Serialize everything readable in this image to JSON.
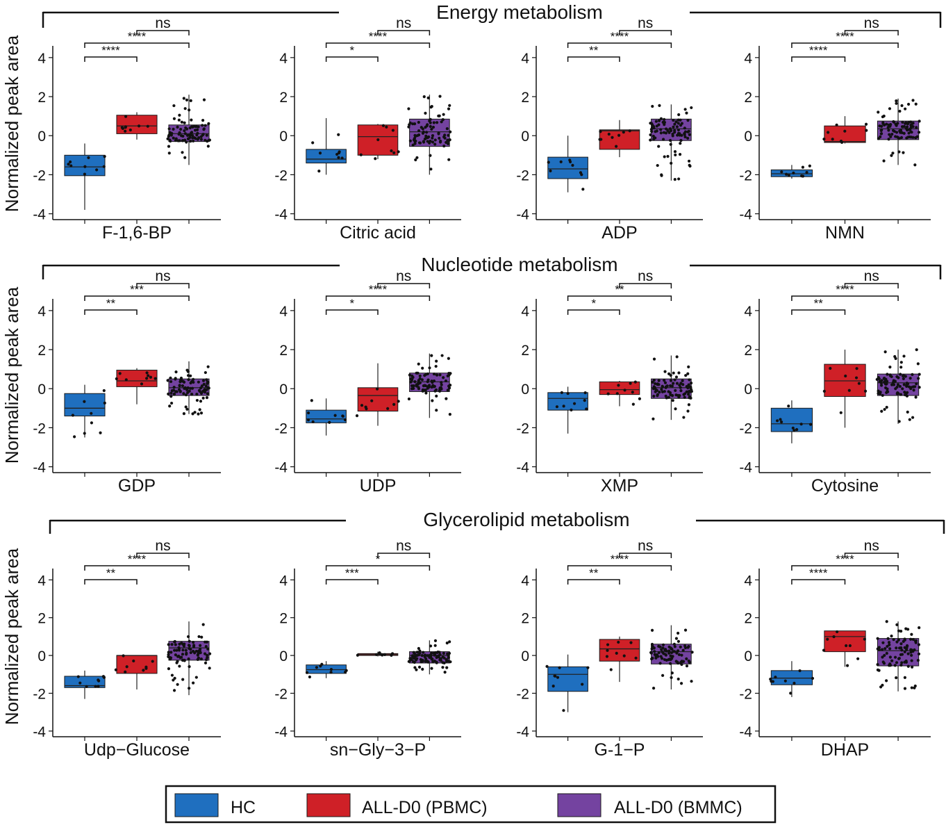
{
  "figure": {
    "y_axis_label": "Normalized peak area",
    "sections": [
      "Energy metabolism",
      "Nucleotide metabolism",
      "Glycerolipid metabolism"
    ],
    "groups": [
      {
        "name": "HC",
        "color": "#1f6fbf"
      },
      {
        "name": "ALL-D0 (PBMC)",
        "color": "#cf2027"
      },
      {
        "name": "ALL-D0 (BMMC)",
        "color": "#7443a0"
      }
    ],
    "outline_color": "#1a1a1a",
    "point_color": "#111111"
  },
  "chart_data": [
    {
      "type": "box",
      "section": "Energy metabolism",
      "xlabel": "F-1,6-BP",
      "ylim": [
        -4.3,
        4.6
      ],
      "yticks": [
        -4,
        -2,
        0,
        2,
        4
      ],
      "boxes": [
        {
          "group": "HC",
          "q1": -2.05,
          "median": -1.6,
          "q3": -1.0,
          "whisker_low": -3.8,
          "whisker_high": -0.4
        },
        {
          "group": "ALL-D0 (PBMC)",
          "q1": 0.1,
          "median": 0.5,
          "q3": 1.05,
          "whisker_low": -0.2,
          "whisker_high": 1.2
        },
        {
          "group": "ALL-D0 (BMMC)",
          "q1": -0.3,
          "median": 0.1,
          "q3": 0.55,
          "whisker_low": -1.5,
          "whisker_high": 2.1
        }
      ],
      "comparisons": [
        {
          "from": "ALL-D0 (PBMC)",
          "to": "ALL-D0 (BMMC)",
          "label": "ns"
        },
        {
          "from": "HC",
          "to": "ALL-D0 (BMMC)",
          "label": "****"
        },
        {
          "from": "HC",
          "to": "ALL-D0 (PBMC)",
          "label": "****"
        }
      ]
    },
    {
      "type": "box",
      "section": "Energy metabolism",
      "xlabel": "Citric acid",
      "ylim": [
        -4.3,
        4.6
      ],
      "yticks": [
        -4,
        -2,
        0,
        2,
        4
      ],
      "boxes": [
        {
          "group": "HC",
          "q1": -1.4,
          "median": -1.2,
          "q3": -0.7,
          "whisker_low": -2.0,
          "whisker_high": 0.9
        },
        {
          "group": "ALL-D0 (PBMC)",
          "q1": -1.0,
          "median": -0.05,
          "q3": 0.55,
          "whisker_low": -1.2,
          "whisker_high": 0.6
        },
        {
          "group": "ALL-D0 (BMMC)",
          "q1": -0.55,
          "median": 0.2,
          "q3": 0.85,
          "whisker_low": -2.0,
          "whisker_high": 2.1
        }
      ],
      "comparisons": [
        {
          "from": "ALL-D0 (PBMC)",
          "to": "ALL-D0 (BMMC)",
          "label": "ns"
        },
        {
          "from": "HC",
          "to": "ALL-D0 (BMMC)",
          "label": "****"
        },
        {
          "from": "HC",
          "to": "ALL-D0 (PBMC)",
          "label": "*"
        }
      ]
    },
    {
      "type": "box",
      "section": "Energy metabolism",
      "xlabel": "ADP",
      "ylim": [
        -4.3,
        4.6
      ],
      "yticks": [
        -4,
        -2,
        0,
        2,
        4
      ],
      "boxes": [
        {
          "group": "HC",
          "q1": -2.2,
          "median": -1.7,
          "q3": -1.1,
          "whisker_low": -2.9,
          "whisker_high": 0.0
        },
        {
          "group": "ALL-D0 (PBMC)",
          "q1": -0.7,
          "median": 0.25,
          "q3": 0.3,
          "whisker_low": -1.1,
          "whisker_high": 0.8
        },
        {
          "group": "ALL-D0 (BMMC)",
          "q1": -0.25,
          "median": 0.35,
          "q3": 0.85,
          "whisker_low": -2.3,
          "whisker_high": 1.6
        }
      ],
      "comparisons": [
        {
          "from": "ALL-D0 (PBMC)",
          "to": "ALL-D0 (BMMC)",
          "label": "ns"
        },
        {
          "from": "HC",
          "to": "ALL-D0 (BMMC)",
          "label": "****"
        },
        {
          "from": "HC",
          "to": "ALL-D0 (PBMC)",
          "label": "**"
        }
      ]
    },
    {
      "type": "box",
      "section": "Energy metabolism",
      "xlabel": "NMN",
      "ylim": [
        -4.3,
        4.6
      ],
      "yticks": [
        -4,
        -2,
        0,
        2,
        4
      ],
      "boxes": [
        {
          "group": "HC",
          "q1": -2.1,
          "median": -1.95,
          "q3": -1.75,
          "whisker_low": -2.2,
          "whisker_high": -1.5
        },
        {
          "group": "ALL-D0 (PBMC)",
          "q1": -0.35,
          "median": -0.3,
          "q3": 0.5,
          "whisker_low": -0.4,
          "whisker_high": 1.0
        },
        {
          "group": "ALL-D0 (BMMC)",
          "q1": -0.2,
          "median": 0.35,
          "q3": 0.75,
          "whisker_low": -1.5,
          "whisker_high": 1.9
        }
      ],
      "comparisons": [
        {
          "from": "ALL-D0 (PBMC)",
          "to": "ALL-D0 (BMMC)",
          "label": "ns"
        },
        {
          "from": "HC",
          "to": "ALL-D0 (BMMC)",
          "label": "****"
        },
        {
          "from": "HC",
          "to": "ALL-D0 (PBMC)",
          "label": "****"
        }
      ]
    },
    {
      "type": "box",
      "section": "Nucleotide metabolism",
      "xlabel": "GDP",
      "ylim": [
        -4.3,
        4.6
      ],
      "yticks": [
        -4,
        -2,
        0,
        2,
        4
      ],
      "boxes": [
        {
          "group": "HC",
          "q1": -1.4,
          "median": -1.0,
          "q3": -0.25,
          "whisker_low": -2.5,
          "whisker_high": 0.2
        },
        {
          "group": "ALL-D0 (PBMC)",
          "q1": 0.1,
          "median": 0.4,
          "q3": 0.95,
          "whisker_low": -0.8,
          "whisker_high": 1.05
        },
        {
          "group": "ALL-D0 (BMMC)",
          "q1": -0.35,
          "median": 0.05,
          "q3": 0.5,
          "whisker_low": -1.3,
          "whisker_high": 1.4
        }
      ],
      "comparisons": [
        {
          "from": "ALL-D0 (PBMC)",
          "to": "ALL-D0 (BMMC)",
          "label": "ns"
        },
        {
          "from": "HC",
          "to": "ALL-D0 (BMMC)",
          "label": "***"
        },
        {
          "from": "HC",
          "to": "ALL-D0 (PBMC)",
          "label": "**"
        }
      ]
    },
    {
      "type": "box",
      "section": "Nucleotide metabolism",
      "xlabel": "UDP",
      "ylim": [
        -4.3,
        4.6
      ],
      "yticks": [
        -4,
        -2,
        0,
        2,
        4
      ],
      "boxes": [
        {
          "group": "HC",
          "q1": -1.75,
          "median": -1.55,
          "q3": -1.1,
          "whisker_low": -2.4,
          "whisker_high": -0.5
        },
        {
          "group": "ALL-D0 (PBMC)",
          "q1": -1.15,
          "median": -0.35,
          "q3": 0.05,
          "whisker_low": -1.9,
          "whisker_high": 1.3
        },
        {
          "group": "ALL-D0 (BMMC)",
          "q1": -0.15,
          "median": 0.35,
          "q3": 0.8,
          "whisker_low": -1.5,
          "whisker_high": 1.8
        }
      ],
      "comparisons": [
        {
          "from": "ALL-D0 (PBMC)",
          "to": "ALL-D0 (BMMC)",
          "label": "ns"
        },
        {
          "from": "HC",
          "to": "ALL-D0 (BMMC)",
          "label": "****"
        },
        {
          "from": "HC",
          "to": "ALL-D0 (PBMC)",
          "label": "*"
        }
      ]
    },
    {
      "type": "box",
      "section": "Nucleotide metabolism",
      "xlabel": "XMP",
      "ylim": [
        -4.3,
        4.6
      ],
      "yticks": [
        -4,
        -2,
        0,
        2,
        4
      ],
      "boxes": [
        {
          "group": "HC",
          "q1": -1.1,
          "median": -0.5,
          "q3": -0.2,
          "whisker_low": -2.3,
          "whisker_high": 0.1
        },
        {
          "group": "ALL-D0 (PBMC)",
          "q1": -0.3,
          "median": -0.05,
          "q3": 0.35,
          "whisker_low": -0.9,
          "whisker_high": 0.4
        },
        {
          "group": "ALL-D0 (BMMC)",
          "q1": -0.5,
          "median": 0.05,
          "q3": 0.5,
          "whisker_low": -1.6,
          "whisker_high": 1.7
        }
      ],
      "comparisons": [
        {
          "from": "ALL-D0 (PBMC)",
          "to": "ALL-D0 (BMMC)",
          "label": "ns"
        },
        {
          "from": "HC",
          "to": "ALL-D0 (BMMC)",
          "label": "**"
        },
        {
          "from": "HC",
          "to": "ALL-D0 (PBMC)",
          "label": "*"
        }
      ]
    },
    {
      "type": "box",
      "section": "Nucleotide metabolism",
      "xlabel": "Cytosine",
      "ylim": [
        -4.3,
        4.6
      ],
      "yticks": [
        -4,
        -2,
        0,
        2,
        4
      ],
      "boxes": [
        {
          "group": "HC",
          "q1": -2.2,
          "median": -1.8,
          "q3": -1.0,
          "whisker_low": -2.8,
          "whisker_high": -0.6
        },
        {
          "group": "ALL-D0 (PBMC)",
          "q1": -0.4,
          "median": 0.4,
          "q3": 1.25,
          "whisker_low": -2.0,
          "whisker_high": 2.0
        },
        {
          "group": "ALL-D0 (BMMC)",
          "q1": -0.35,
          "median": 0.3,
          "q3": 0.75,
          "whisker_low": -1.8,
          "whisker_high": 2.0
        }
      ],
      "comparisons": [
        {
          "from": "ALL-D0 (PBMC)",
          "to": "ALL-D0 (BMMC)",
          "label": "ns"
        },
        {
          "from": "HC",
          "to": "ALL-D0 (BMMC)",
          "label": "****"
        },
        {
          "from": "HC",
          "to": "ALL-D0 (PBMC)",
          "label": "**"
        }
      ]
    },
    {
      "type": "box",
      "section": "Glycerolipid metabolism",
      "xlabel": "Udp−Glucose",
      "ylim": [
        -4.3,
        4.6
      ],
      "yticks": [
        -4,
        -2,
        0,
        2,
        4
      ],
      "boxes": [
        {
          "group": "HC",
          "q1": -1.7,
          "median": -1.6,
          "q3": -1.1,
          "whisker_low": -2.3,
          "whisker_high": -0.8
        },
        {
          "group": "ALL-D0 (PBMC)",
          "q1": -0.95,
          "median": 0.0,
          "q3": 0.0,
          "whisker_low": -1.8,
          "whisker_high": 0.0
        },
        {
          "group": "ALL-D0 (BMMC)",
          "q1": -0.25,
          "median": 0.4,
          "q3": 0.75,
          "whisker_low": -2.1,
          "whisker_high": 1.8
        }
      ],
      "comparisons": [
        {
          "from": "ALL-D0 (PBMC)",
          "to": "ALL-D0 (BMMC)",
          "label": "ns"
        },
        {
          "from": "HC",
          "to": "ALL-D0 (BMMC)",
          "label": "****"
        },
        {
          "from": "HC",
          "to": "ALL-D0 (PBMC)",
          "label": "**"
        }
      ]
    },
    {
      "type": "box",
      "section": "Glycerolipid metabolism",
      "xlabel": "sn−Gly−3−P",
      "ylim": [
        -4.3,
        4.6
      ],
      "yticks": [
        -4,
        -2,
        0,
        2,
        4
      ],
      "boxes": [
        {
          "group": "HC",
          "q1": -0.95,
          "median": -0.75,
          "q3": -0.5,
          "whisker_low": -1.2,
          "whisker_high": -0.3
        },
        {
          "group": "ALL-D0 (PBMC)",
          "q1": 0.0,
          "median": 0.05,
          "q3": 0.1,
          "whisker_low": -0.05,
          "whisker_high": 0.2
        },
        {
          "group": "ALL-D0 (BMMC)",
          "q1": -0.4,
          "median": 0.0,
          "q3": 0.2,
          "whisker_low": -1.0,
          "whisker_high": 0.8
        }
      ],
      "comparisons": [
        {
          "from": "ALL-D0 (PBMC)",
          "to": "ALL-D0 (BMMC)",
          "label": "ns"
        },
        {
          "from": "HC",
          "to": "ALL-D0 (BMMC)",
          "label": "*"
        },
        {
          "from": "HC",
          "to": "ALL-D0 (PBMC)",
          "label": "***"
        }
      ]
    },
    {
      "type": "box",
      "section": "Glycerolipid metabolism",
      "xlabel": "G-1−P",
      "ylim": [
        -4.3,
        4.6
      ],
      "yticks": [
        -4,
        -2,
        0,
        2,
        4
      ],
      "boxes": [
        {
          "group": "HC",
          "q1": -1.9,
          "median": -1.0,
          "q3": -0.6,
          "whisker_low": -3.0,
          "whisker_high": 0.05
        },
        {
          "group": "ALL-D0 (PBMC)",
          "q1": -0.3,
          "median": 0.35,
          "q3": 0.85,
          "whisker_low": -1.4,
          "whisker_high": 1.0
        },
        {
          "group": "ALL-D0 (BMMC)",
          "q1": -0.45,
          "median": 0.2,
          "q3": 0.6,
          "whisker_low": -1.8,
          "whisker_high": 1.6
        }
      ],
      "comparisons": [
        {
          "from": "ALL-D0 (PBMC)",
          "to": "ALL-D0 (BMMC)",
          "label": "ns"
        },
        {
          "from": "HC",
          "to": "ALL-D0 (BMMC)",
          "label": "****"
        },
        {
          "from": "HC",
          "to": "ALL-D0 (PBMC)",
          "label": "**"
        }
      ]
    },
    {
      "type": "box",
      "section": "Glycerolipid metabolism",
      "xlabel": "DHAP",
      "ylim": [
        -4.3,
        4.6
      ],
      "yticks": [
        -4,
        -2,
        0,
        2,
        4
      ],
      "boxes": [
        {
          "group": "HC",
          "q1": -1.55,
          "median": -1.2,
          "q3": -0.8,
          "whisker_low": -2.2,
          "whisker_high": -0.3
        },
        {
          "group": "ALL-D0 (PBMC)",
          "q1": 0.2,
          "median": 1.0,
          "q3": 1.3,
          "whisker_low": -0.6,
          "whisker_high": 1.3
        },
        {
          "group": "ALL-D0 (BMMC)",
          "q1": -0.55,
          "median": 0.25,
          "q3": 0.9,
          "whisker_low": -1.9,
          "whisker_high": 1.8
        }
      ],
      "comparisons": [
        {
          "from": "ALL-D0 (PBMC)",
          "to": "ALL-D0 (BMMC)",
          "label": "ns"
        },
        {
          "from": "HC",
          "to": "ALL-D0 (BMMC)",
          "label": "****"
        },
        {
          "from": "HC",
          "to": "ALL-D0 (PBMC)",
          "label": "****"
        }
      ]
    }
  ]
}
